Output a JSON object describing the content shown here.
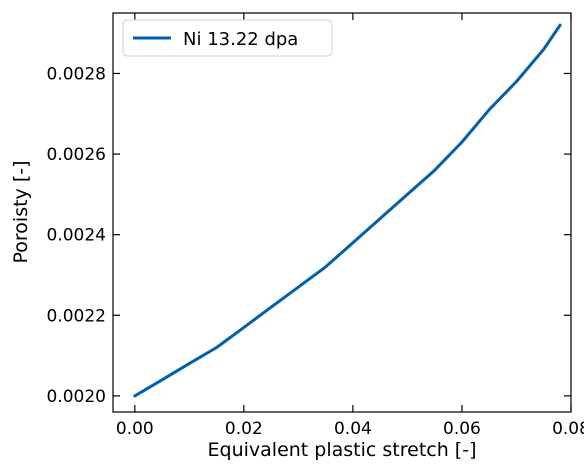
{
  "chart_data": {
    "type": "line",
    "title": "",
    "xlabel": "Equivalent plastic stretch [-]",
    "ylabel": "Poroisty [-]",
    "xlim": [
      -0.004,
      0.08
    ],
    "ylim": [
      0.00196,
      0.00295
    ],
    "xticks": [
      0.0,
      0.02,
      0.04,
      0.06,
      0.08
    ],
    "xtick_labels": [
      "0.00",
      "0.02",
      "0.04",
      "0.06",
      "0.08"
    ],
    "yticks": [
      0.002,
      0.0022,
      0.0024,
      0.0026,
      0.0028
    ],
    "ytick_labels": [
      "0.0020",
      "0.0022",
      "0.0024",
      "0.0026",
      "0.0028"
    ],
    "grid": false,
    "legend_position": "top-left",
    "series": [
      {
        "name": "Ni 13.22 dpa",
        "color": "#0060ad",
        "x": [
          0.0,
          0.005,
          0.01,
          0.015,
          0.02,
          0.025,
          0.03,
          0.035,
          0.04,
          0.045,
          0.05,
          0.055,
          0.06,
          0.065,
          0.07,
          0.075,
          0.078
        ],
        "y": [
          0.002,
          0.00204,
          0.00208,
          0.00212,
          0.00217,
          0.00222,
          0.00227,
          0.00232,
          0.00238,
          0.00244,
          0.0025,
          0.00256,
          0.00263,
          0.00271,
          0.00278,
          0.00286,
          0.00292
        ]
      }
    ]
  }
}
